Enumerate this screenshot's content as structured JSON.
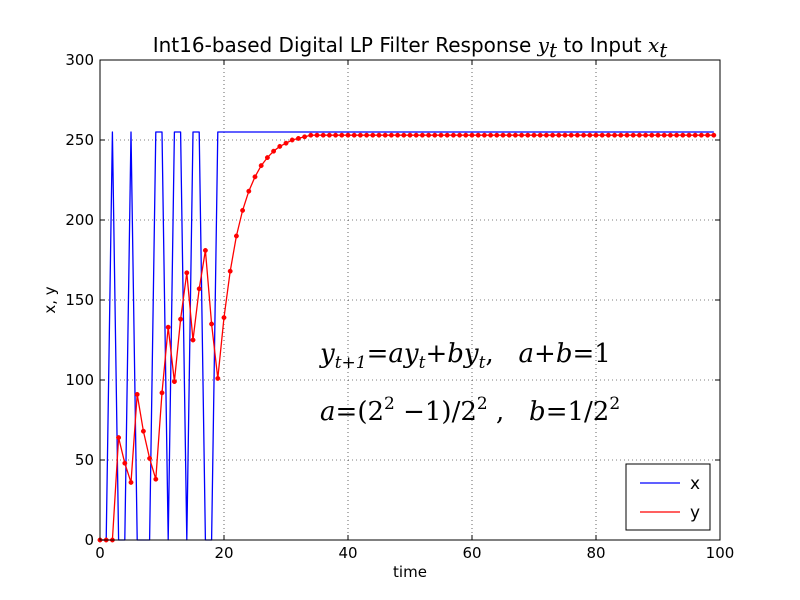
{
  "chart_data": {
    "type": "line",
    "title": {
      "text": "Int16-based Digital LP Filter Response ",
      "math_y": "y",
      "math_y_sub": "t",
      "mid": " to Input ",
      "math_x": "x",
      "math_x_sub": "t"
    },
    "xlabel": "time",
    "ylabel": "x, y",
    "xlim": [
      0,
      100
    ],
    "ylim": [
      0,
      300
    ],
    "xticks": [
      0,
      20,
      40,
      60,
      80,
      100
    ],
    "yticks": [
      0,
      50,
      100,
      150,
      200,
      250,
      300
    ],
    "grid": true,
    "legend_position": "lower right",
    "series": [
      {
        "name": "x",
        "color": "#0000ff",
        "marker": "none",
        "values": [
          0,
          0,
          255,
          0,
          0,
          255,
          0,
          0,
          0,
          255,
          255,
          0,
          255,
          255,
          0,
          255,
          255,
          0,
          0,
          255,
          255,
          255,
          255,
          255,
          255,
          255,
          255,
          255,
          255,
          255,
          255,
          255,
          255,
          255,
          255,
          255,
          255,
          255,
          255,
          255,
          255,
          255,
          255,
          255,
          255,
          255,
          255,
          255,
          255,
          255,
          255,
          255,
          255,
          255,
          255,
          255,
          255,
          255,
          255,
          255,
          255,
          255,
          255,
          255,
          255,
          255,
          255,
          255,
          255,
          255,
          255,
          255,
          255,
          255,
          255,
          255,
          255,
          255,
          255,
          255,
          255,
          255,
          255,
          255,
          255,
          255,
          255,
          255,
          255,
          255,
          255,
          255,
          255,
          255,
          255,
          255,
          255,
          255,
          255,
          255
        ]
      },
      {
        "name": "y",
        "color": "#ff0000",
        "marker": "dot",
        "values": [
          0,
          0,
          0,
          64,
          48,
          36,
          91,
          68,
          51,
          38,
          92,
          133,
          99,
          138,
          167,
          125,
          157,
          181,
          135,
          101,
          139,
          168,
          190,
          206,
          218,
          227,
          234,
          239,
          243,
          246,
          248,
          250,
          251,
          252,
          253,
          253,
          253,
          253,
          253,
          253,
          253,
          253,
          253,
          253,
          253,
          253,
          253,
          253,
          253,
          253,
          253,
          253,
          253,
          253,
          253,
          253,
          253,
          253,
          253,
          253,
          253,
          253,
          253,
          253,
          253,
          253,
          253,
          253,
          253,
          253,
          253,
          253,
          253,
          253,
          253,
          253,
          253,
          253,
          253,
          253,
          253,
          253,
          253,
          253,
          253,
          253,
          253,
          253,
          253,
          253,
          253,
          253,
          253,
          253,
          253,
          253,
          253,
          253,
          253,
          253
        ]
      }
    ],
    "annotation": {
      "line1": {
        "a": "y",
        "a_sub": "t+1",
        "b": "=",
        "c": "ay",
        "c_sub": "t",
        "d": "+",
        "e": "by",
        "e_sub": "t",
        "f": ",   ",
        "g": "a",
        "h": "+",
        "i": "b",
        "j": "=",
        "k": "1"
      },
      "line2": {
        "a": "a",
        "b": "=",
        "c": "(2",
        "c_sup": "2",
        "d": " −1)/2",
        "d_sup": "2",
        "e": " ,   ",
        "f": "b",
        "g": "=",
        "h": "1/2",
        "h_sup": "2"
      }
    }
  }
}
